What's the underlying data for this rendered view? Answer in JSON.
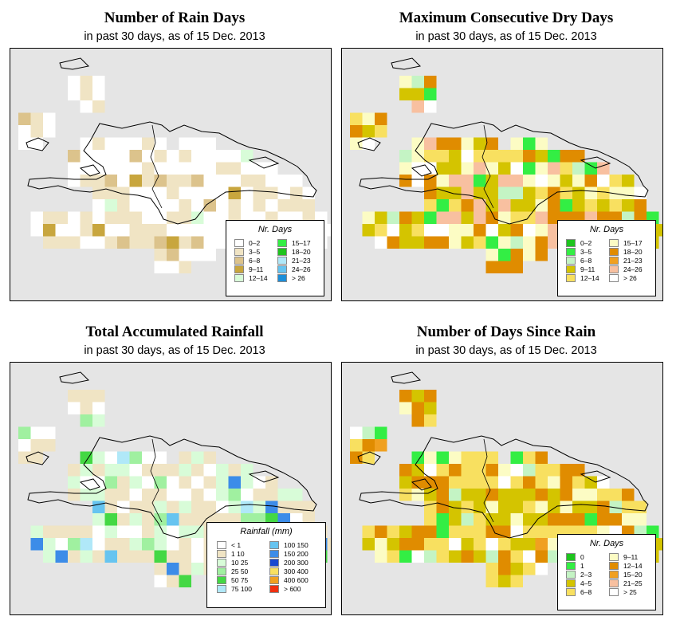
{
  "panels": [
    {
      "title": "Number of Rain Days",
      "subtitle": "in past 30 days, as of  15 Dec. 2013",
      "legend": {
        "title": "Nr. Days",
        "items": [
          {
            "label": "0–2",
            "color": "#ffffff"
          },
          {
            "label": "3–5",
            "color": "#f0e4c4"
          },
          {
            "label": "6–8",
            "color": "#dcc38c"
          },
          {
            "label": "9–11",
            "color": "#c8a63e"
          },
          {
            "label": "12–14",
            "color": "#d8fcd8"
          },
          {
            "label": "15–17",
            "color": "#33ee44"
          },
          {
            "label": "18–20",
            "color": "#1ec41e"
          },
          {
            "label": "21–23",
            "color": "#b0e8f8"
          },
          {
            "label": "24–26",
            "color": "#66c4f0"
          },
          {
            "label": "> 26",
            "color": "#1c8ed8"
          }
        ]
      }
    },
    {
      "title": "Maximum Consecutive Dry Days",
      "subtitle": "in past 30 days, as of  15 Dec. 2013",
      "legend": {
        "title": "Nr. Days",
        "items": [
          {
            "label": "0–2",
            "color": "#1ec41e"
          },
          {
            "label": "3–5",
            "color": "#33ee44"
          },
          {
            "label": "6–8",
            "color": "#c4f4c4"
          },
          {
            "label": "9–11",
            "color": "#d4c400"
          },
          {
            "label": "12–14",
            "color": "#f8e060"
          },
          {
            "label": "15–17",
            "color": "#fcfcc4"
          },
          {
            "label": "18–20",
            "color": "#e08c00"
          },
          {
            "label": "21–23",
            "color": "#f0a020"
          },
          {
            "label": "24–26",
            "color": "#f8c0a0"
          },
          {
            "label": "> 26",
            "color": "#ffffff"
          }
        ]
      }
    },
    {
      "title": "Total Accumulated Rainfall",
      "subtitle": "in past 30 days, as of  15 Dec. 2013",
      "legend": {
        "title": "Rainfall (mm)",
        "items": [
          {
            "label": "< 1",
            "color": "#ffffff"
          },
          {
            "label": "1  10",
            "color": "#f0e4c4"
          },
          {
            "label": "10  25",
            "color": "#d8fcd8"
          },
          {
            "label": "25  50",
            "color": "#a0f0a0"
          },
          {
            "label": "50  75",
            "color": "#44d844"
          },
          {
            "label": "75  100",
            "color": "#b0e8f8"
          },
          {
            "label": "100  150",
            "color": "#66c4f0"
          },
          {
            "label": "150  200",
            "color": "#3c8ce8"
          },
          {
            "label": "200  300",
            "color": "#1848d0"
          },
          {
            "label": "300  400",
            "color": "#f8e060"
          },
          {
            "label": "400  600",
            "color": "#f0a020"
          },
          {
            "label": "> 600",
            "color": "#f03010"
          }
        ]
      }
    },
    {
      "title": "Number of Days Since Rain",
      "subtitle": "in past 30 days, as of  15 Dec. 2013",
      "legend": {
        "title": "Nr. Days",
        "items": [
          {
            "label": "0",
            "color": "#1ec41e"
          },
          {
            "label": "1",
            "color": "#33ee44"
          },
          {
            "label": "2–3",
            "color": "#c4f4c4"
          },
          {
            "label": "4–5",
            "color": "#d4c400"
          },
          {
            "label": "6–8",
            "color": "#f8e060"
          },
          {
            "label": "9–11",
            "color": "#fcfcc4"
          },
          {
            "label": "12–14",
            "color": "#e08c00"
          },
          {
            "label": "15–20",
            "color": "#f0a020"
          },
          {
            "label": "21–25",
            "color": "#f8c0a0"
          },
          {
            "label": "> 25",
            "color": "#ffffff"
          }
        ]
      }
    }
  ]
}
